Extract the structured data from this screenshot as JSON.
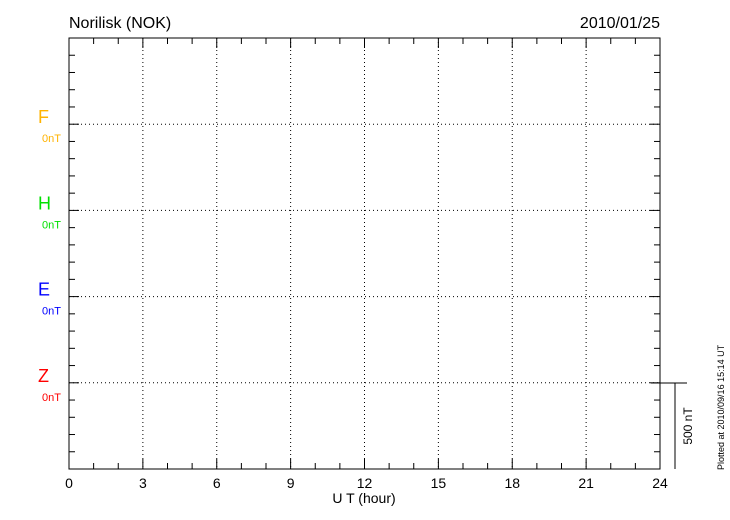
{
  "chart_data": {
    "type": "line",
    "title": "Norilisk (NOK)",
    "date": "2010/01/25",
    "xlabel": "U T (hour)",
    "xlim": [
      0,
      24
    ],
    "xticks": [
      "0",
      "3",
      "6",
      "9",
      "12",
      "15",
      "18",
      "21",
      "24"
    ],
    "grid": true,
    "series": [
      {
        "name": "F",
        "baseline_label": "0nT",
        "color": "#ffb300",
        "values": []
      },
      {
        "name": "H",
        "baseline_label": "0nT",
        "color": "#00e000",
        "values": []
      },
      {
        "name": "E",
        "baseline_label": "0nT",
        "color": "#0000ff",
        "values": []
      },
      {
        "name": "Z",
        "baseline_label": "0nT",
        "color": "#ff0000",
        "values": []
      }
    ],
    "scale_bar_label": "500 nT",
    "footer": "Plotted at 2010/09/16 15:14 UT"
  }
}
